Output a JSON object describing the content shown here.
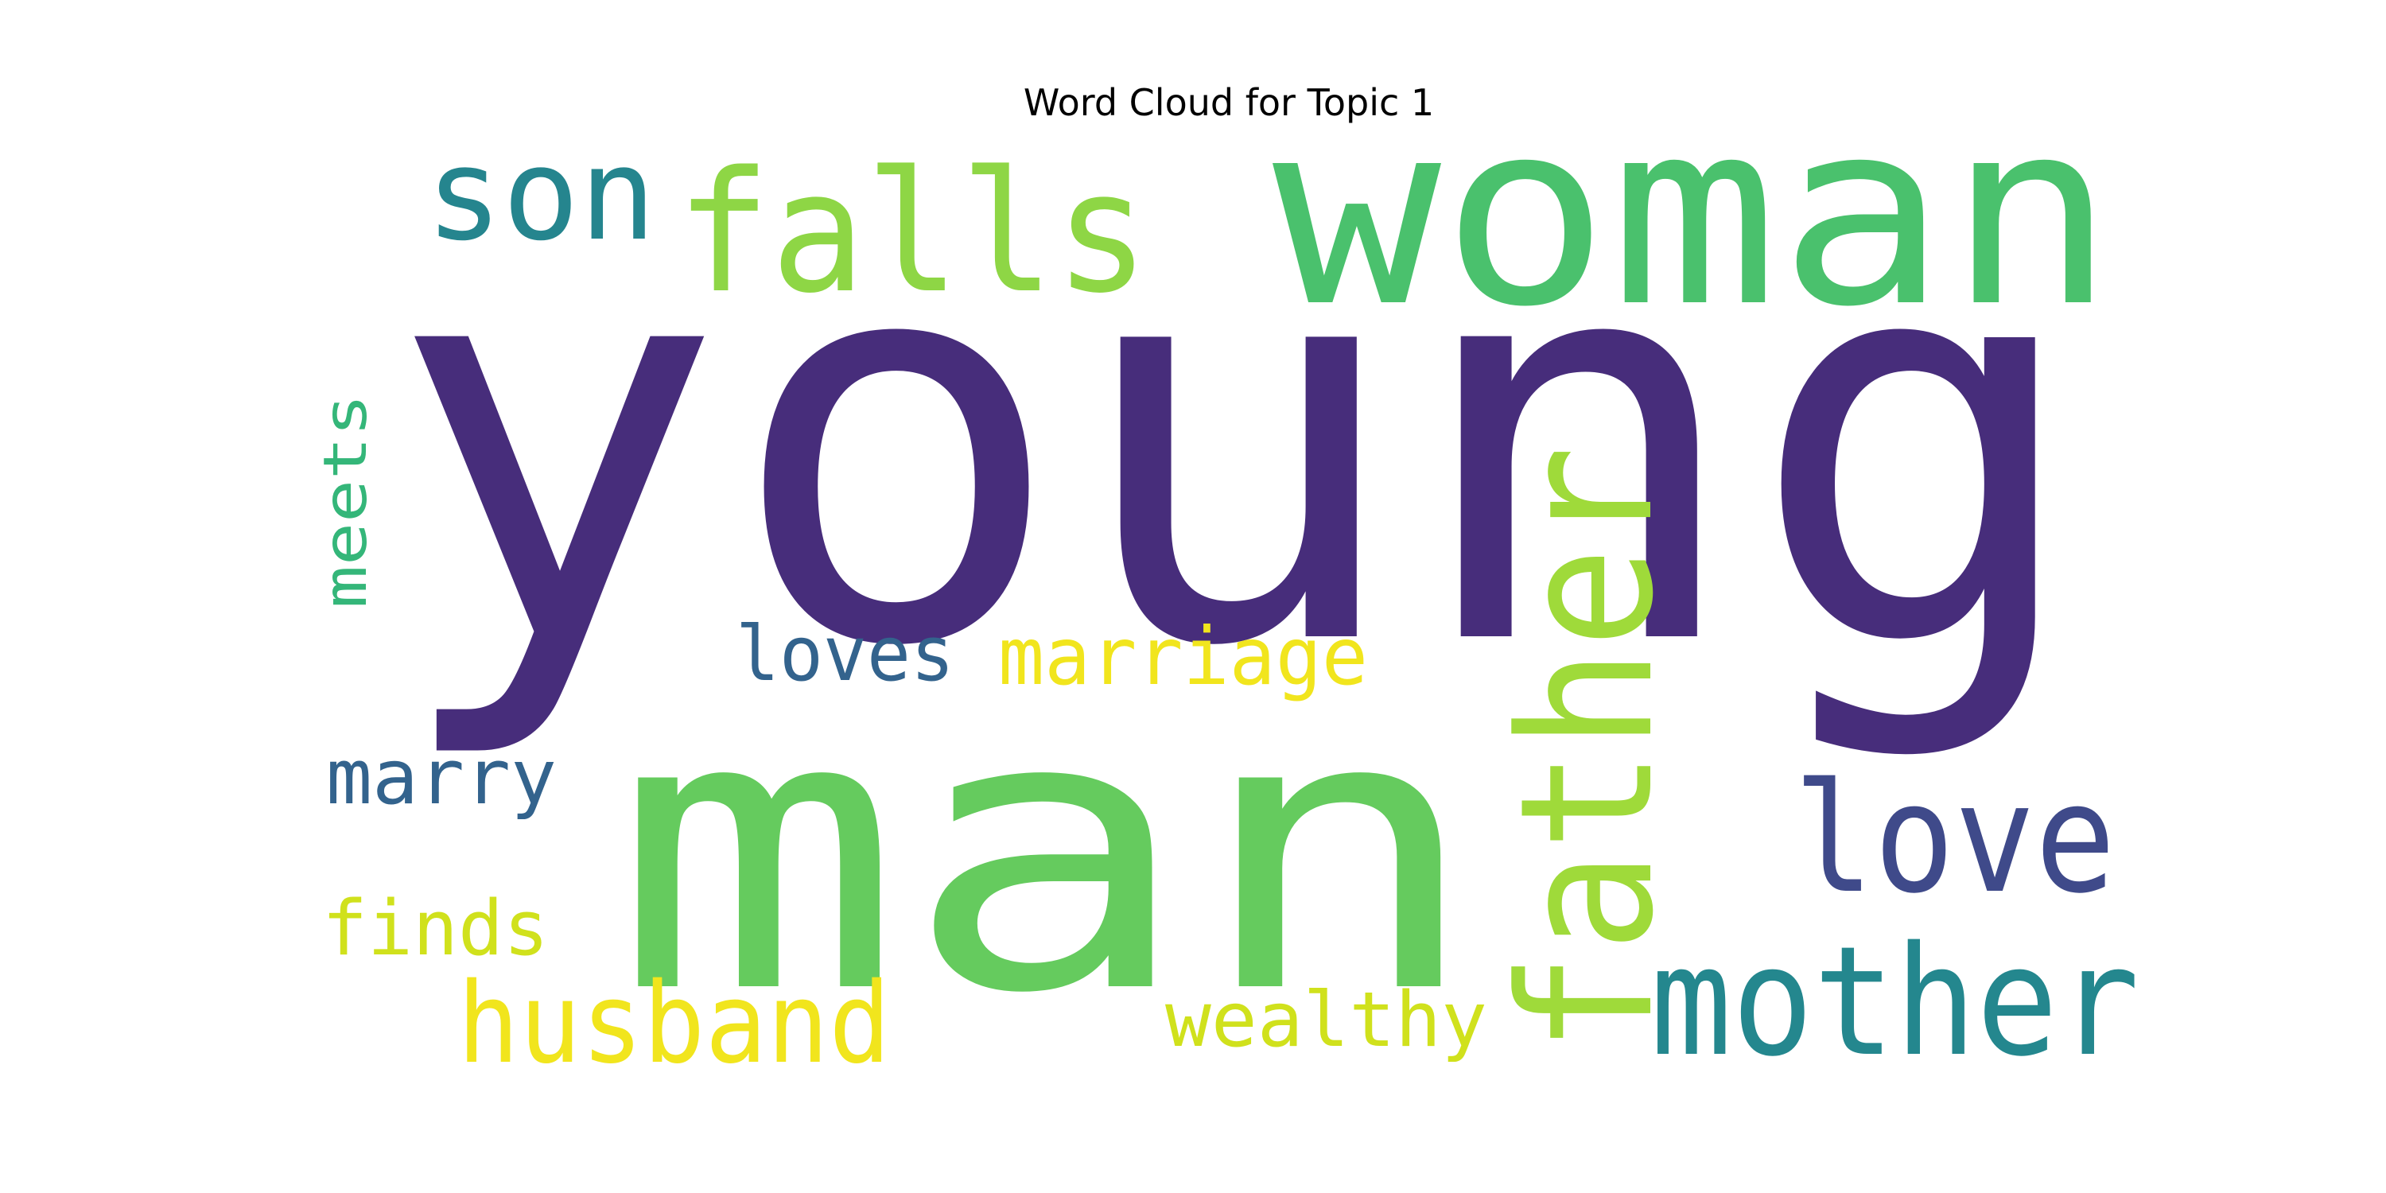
{
  "chart_data": {
    "type": "wordcloud",
    "title": "Word Cloud for Topic 1",
    "words": [
      {
        "text": "young",
        "color": "#472d7b"
      },
      {
        "text": "man",
        "color": "#65cb5e"
      },
      {
        "text": "woman",
        "color": "#4ac16d"
      },
      {
        "text": "falls",
        "color": "#8ed645"
      },
      {
        "text": "son",
        "color": "#25858e"
      },
      {
        "text": "father",
        "color": "#9fda3a"
      },
      {
        "text": "love",
        "color": "#3f4a8a"
      },
      {
        "text": "mother",
        "color": "#24878e"
      },
      {
        "text": "husband",
        "color": "#f1e51d"
      },
      {
        "text": "marriage",
        "color": "#f1e51d"
      },
      {
        "text": "loves",
        "color": "#33638d"
      },
      {
        "text": "meets",
        "color": "#34b679"
      },
      {
        "text": "marry",
        "color": "#33638d"
      },
      {
        "text": "finds",
        "color": "#d0e11c"
      },
      {
        "text": "wealthy",
        "color": "#d0e11c"
      }
    ]
  }
}
